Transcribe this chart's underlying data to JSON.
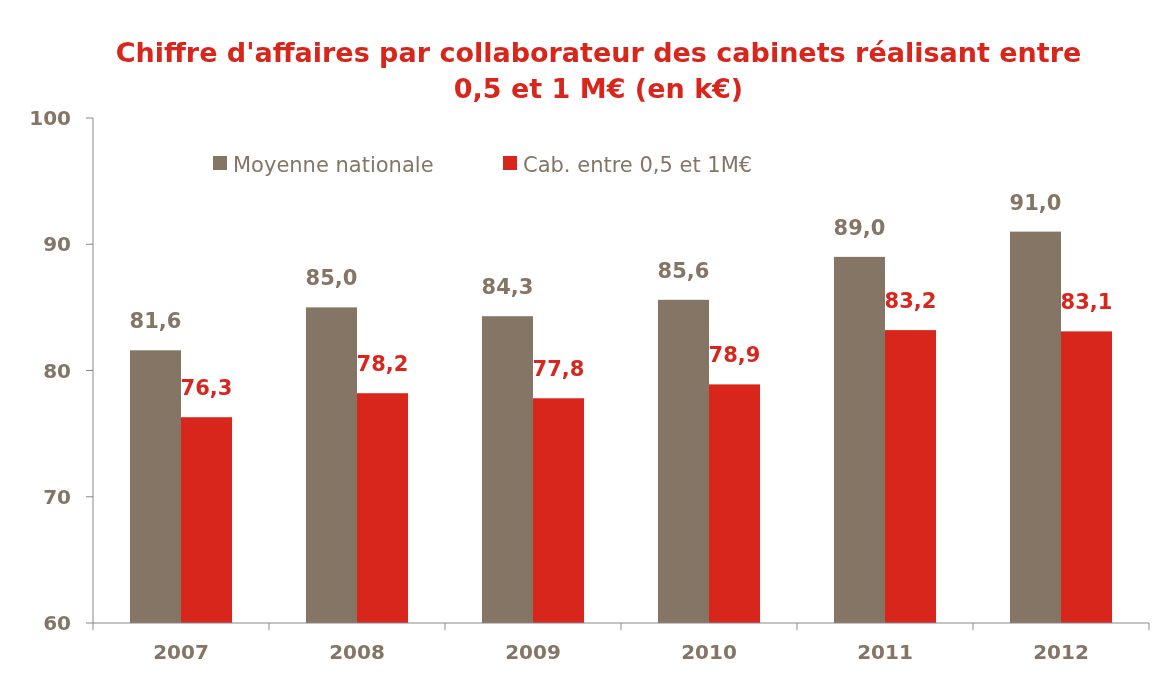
{
  "chart_data": {
    "type": "bar",
    "title": "Chiffre d'affaires par collaborateur des cabinets réalisant entre 0,5 et 1 M€ (en k€)",
    "categories": [
      "2007",
      "2008",
      "2009",
      "2010",
      "2011",
      "2012"
    ],
    "series": [
      {
        "name": "Moyenne nationale",
        "color": "#857565",
        "values": [
          81.6,
          85.0,
          84.3,
          85.6,
          89.0,
          91.0
        ],
        "value_labels": [
          "81,6",
          "85,0",
          "84,3",
          "85,6",
          "89,0",
          "91,0"
        ]
      },
      {
        "name": "Cab. entre 0,5 et 1M€",
        "color": "#d9261c",
        "values": [
          76.3,
          78.2,
          77.8,
          78.9,
          83.2,
          83.1
        ],
        "value_labels": [
          "76,3",
          "78,2",
          "77,8",
          "78,9",
          "83,2",
          "83,1"
        ]
      }
    ],
    "ylim": [
      60,
      100
    ],
    "yticks": [
      60,
      70,
      80,
      90,
      100
    ],
    "grid": false,
    "legend": "top left"
  }
}
